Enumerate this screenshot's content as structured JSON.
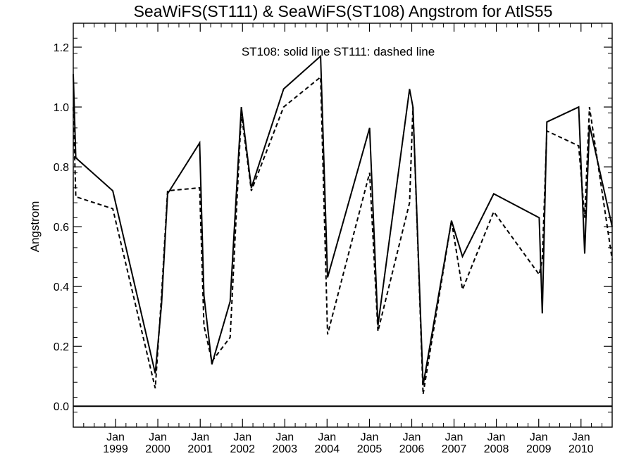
{
  "chart_data": {
    "type": "line",
    "title": "SeaWiFS(ST111) & SeaWiFS(ST108)  Angstrom for AtlS55",
    "ylabel": "Angstrom",
    "xlabel": "",
    "annotation": "ST108: solid line   ST111: dashed line",
    "ylim": [
      -0.07,
      1.28
    ],
    "xlim": [
      "1998-01-01",
      "2010-09-27"
    ],
    "yticks": [
      "0.0",
      "0.2",
      "0.4",
      "0.6",
      "0.8",
      "1.0",
      "1.2"
    ],
    "xticks": [
      {
        "top": "Jan",
        "bottom": "1999",
        "date": "1999-01-01"
      },
      {
        "top": "Jan",
        "bottom": "2000",
        "date": "2000-01-01"
      },
      {
        "top": "Jan",
        "bottom": "2001",
        "date": "2001-01-01"
      },
      {
        "top": "Jan",
        "bottom": "2002",
        "date": "2002-01-01"
      },
      {
        "top": "Jan",
        "bottom": "2003",
        "date": "2003-01-01"
      },
      {
        "top": "Jan",
        "bottom": "2004",
        "date": "2004-01-01"
      },
      {
        "top": "Jan",
        "bottom": "2005",
        "date": "2005-01-01"
      },
      {
        "top": "Jan",
        "bottom": "2006",
        "date": "2006-01-01"
      },
      {
        "top": "Jan",
        "bottom": "2007",
        "date": "2007-01-01"
      },
      {
        "top": "Jan",
        "bottom": "2008",
        "date": "2008-01-01"
      },
      {
        "top": "Jan",
        "bottom": "2009",
        "date": "2009-01-01"
      },
      {
        "top": "Jan",
        "bottom": "2010",
        "date": "2010-01-01"
      }
    ],
    "reference_line_y": 0.0,
    "series": [
      {
        "name": "ST108",
        "style": "solid",
        "x": [
          "1998-01-01",
          "1998-01-23",
          "1998-12-08",
          "1999-12-10",
          "2000-02-02",
          "2000-03-25",
          "2000-12-27",
          "2001-02-02",
          "2001-04-12",
          "2001-09-16",
          "2001-12-22",
          "2002-03-18",
          "2002-12-22",
          "2003-11-06",
          "2004-01-05",
          "2005-01-02",
          "2005-03-15",
          "2005-12-13",
          "2006-01-11",
          "2006-04-09",
          "2006-12-10",
          "2007-03-15",
          "2007-12-10",
          "2009-01-05",
          "2009-02-01",
          "2009-03-12",
          "2009-12-12",
          "2010-02-02",
          "2010-03-15",
          "2010-09-27"
        ],
        "y": [
          1.11,
          0.83,
          0.72,
          0.11,
          0.34,
          0.71,
          0.88,
          0.37,
          0.14,
          0.35,
          1.0,
          0.73,
          1.06,
          1.17,
          0.43,
          0.93,
          0.27,
          1.06,
          1.0,
          0.07,
          0.62,
          0.5,
          0.71,
          0.63,
          0.31,
          0.95,
          1.0,
          0.51,
          0.94,
          0.6
        ]
      },
      {
        "name": "ST111",
        "style": "dashed",
        "x": [
          "1998-01-01",
          "1998-01-23",
          "1998-12-08",
          "1999-12-10",
          "2000-02-02",
          "2000-03-25",
          "2000-12-27",
          "2001-02-02",
          "2001-04-12",
          "2001-09-16",
          "2001-12-22",
          "2002-03-18",
          "2002-12-22",
          "2003-11-06",
          "2004-01-05",
          "2005-01-02",
          "2005-03-15",
          "2005-12-13",
          "2006-01-11",
          "2006-04-09",
          "2006-12-10",
          "2007-03-15",
          "2007-12-10",
          "2009-01-05",
          "2009-02-01",
          "2009-03-12",
          "2009-12-12",
          "2010-02-02",
          "2010-03-15",
          "2010-09-27"
        ],
        "y": [
          1.0,
          0.7,
          0.66,
          0.06,
          0.37,
          0.72,
          0.73,
          0.27,
          0.15,
          0.23,
          0.98,
          0.72,
          1.0,
          1.1,
          0.24,
          0.78,
          0.25,
          0.68,
          1.0,
          0.04,
          0.62,
          0.39,
          0.65,
          0.44,
          0.49,
          0.92,
          0.87,
          0.63,
          1.0,
          0.49
        ]
      }
    ]
  }
}
